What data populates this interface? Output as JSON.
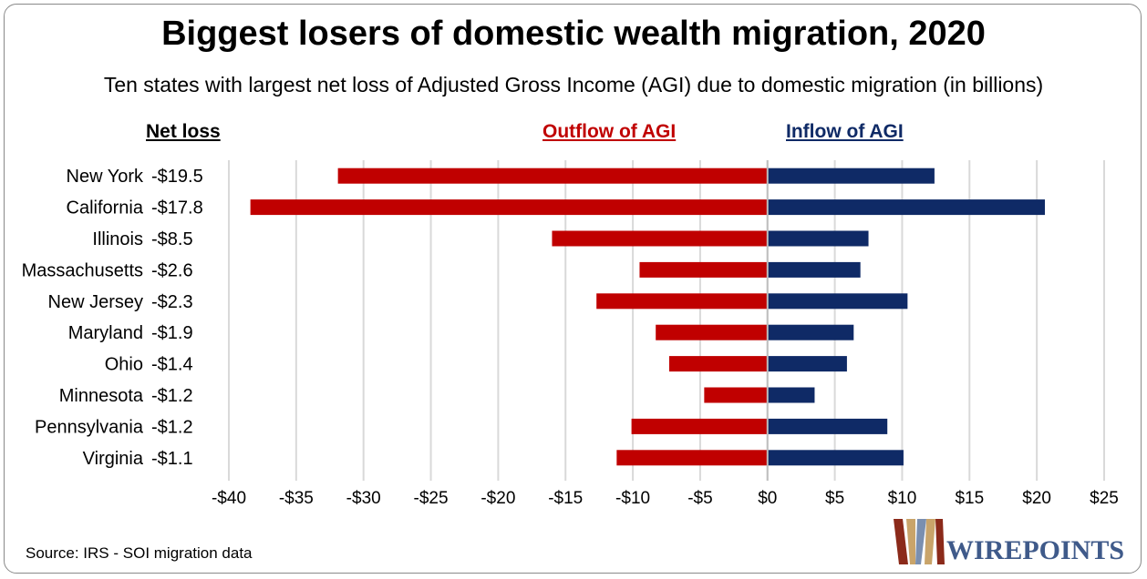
{
  "title": "Biggest losers of domestic wealth migration, 2020",
  "subtitle": "Ten states with largest net loss of Adjusted Gross Income (AGI) due to domestic migration (in billions)",
  "headers": {
    "net_loss": "Net loss",
    "outflow": "Outflow of AGI",
    "inflow": "Inflow of AGI"
  },
  "source": "Source: IRS - SOI migration data",
  "logo_text": "WIREPOINTS",
  "colors": {
    "outflow": "#c00000",
    "inflow": "#0f2a66",
    "grid": "#d9d9d9"
  },
  "chart_data": {
    "type": "bar",
    "orientation": "horizontal",
    "title": "Biggest losers of domestic wealth migration, 2020",
    "categories": [
      "New York",
      "California",
      "Illinois",
      "Massachusetts",
      "New Jersey",
      "Maryland",
      "Ohio",
      "Minnesota",
      "Pennsylvania",
      "Virginia"
    ],
    "net_loss_labels": [
      "-$19.5",
      "-$17.8",
      "-$8.5",
      "-$2.6",
      "-$2.3",
      "-$1.9",
      "-$1.4",
      "-$1.2",
      "-$1.2",
      "-$1.1"
    ],
    "series": [
      {
        "name": "Outflow of AGI",
        "values": [
          -31.9,
          -38.4,
          -16.0,
          -9.5,
          -12.7,
          -8.3,
          -7.3,
          -4.7,
          -10.1,
          -11.2
        ]
      },
      {
        "name": "Inflow of AGI",
        "values": [
          12.4,
          20.6,
          7.5,
          6.9,
          10.4,
          6.4,
          5.9,
          3.5,
          8.9,
          10.1
        ]
      }
    ],
    "xlim": [
      -40,
      25
    ],
    "xticks": [
      -40,
      -35,
      -30,
      -25,
      -20,
      -15,
      -10,
      -5,
      0,
      5,
      10,
      15,
      20,
      25
    ],
    "xtick_labels": [
      "-$40",
      "-$35",
      "-$30",
      "-$25",
      "-$20",
      "-$15",
      "-$10",
      "-$5",
      "$0",
      "$5",
      "$10",
      "$15",
      "$20",
      "$25"
    ],
    "grid": true
  }
}
